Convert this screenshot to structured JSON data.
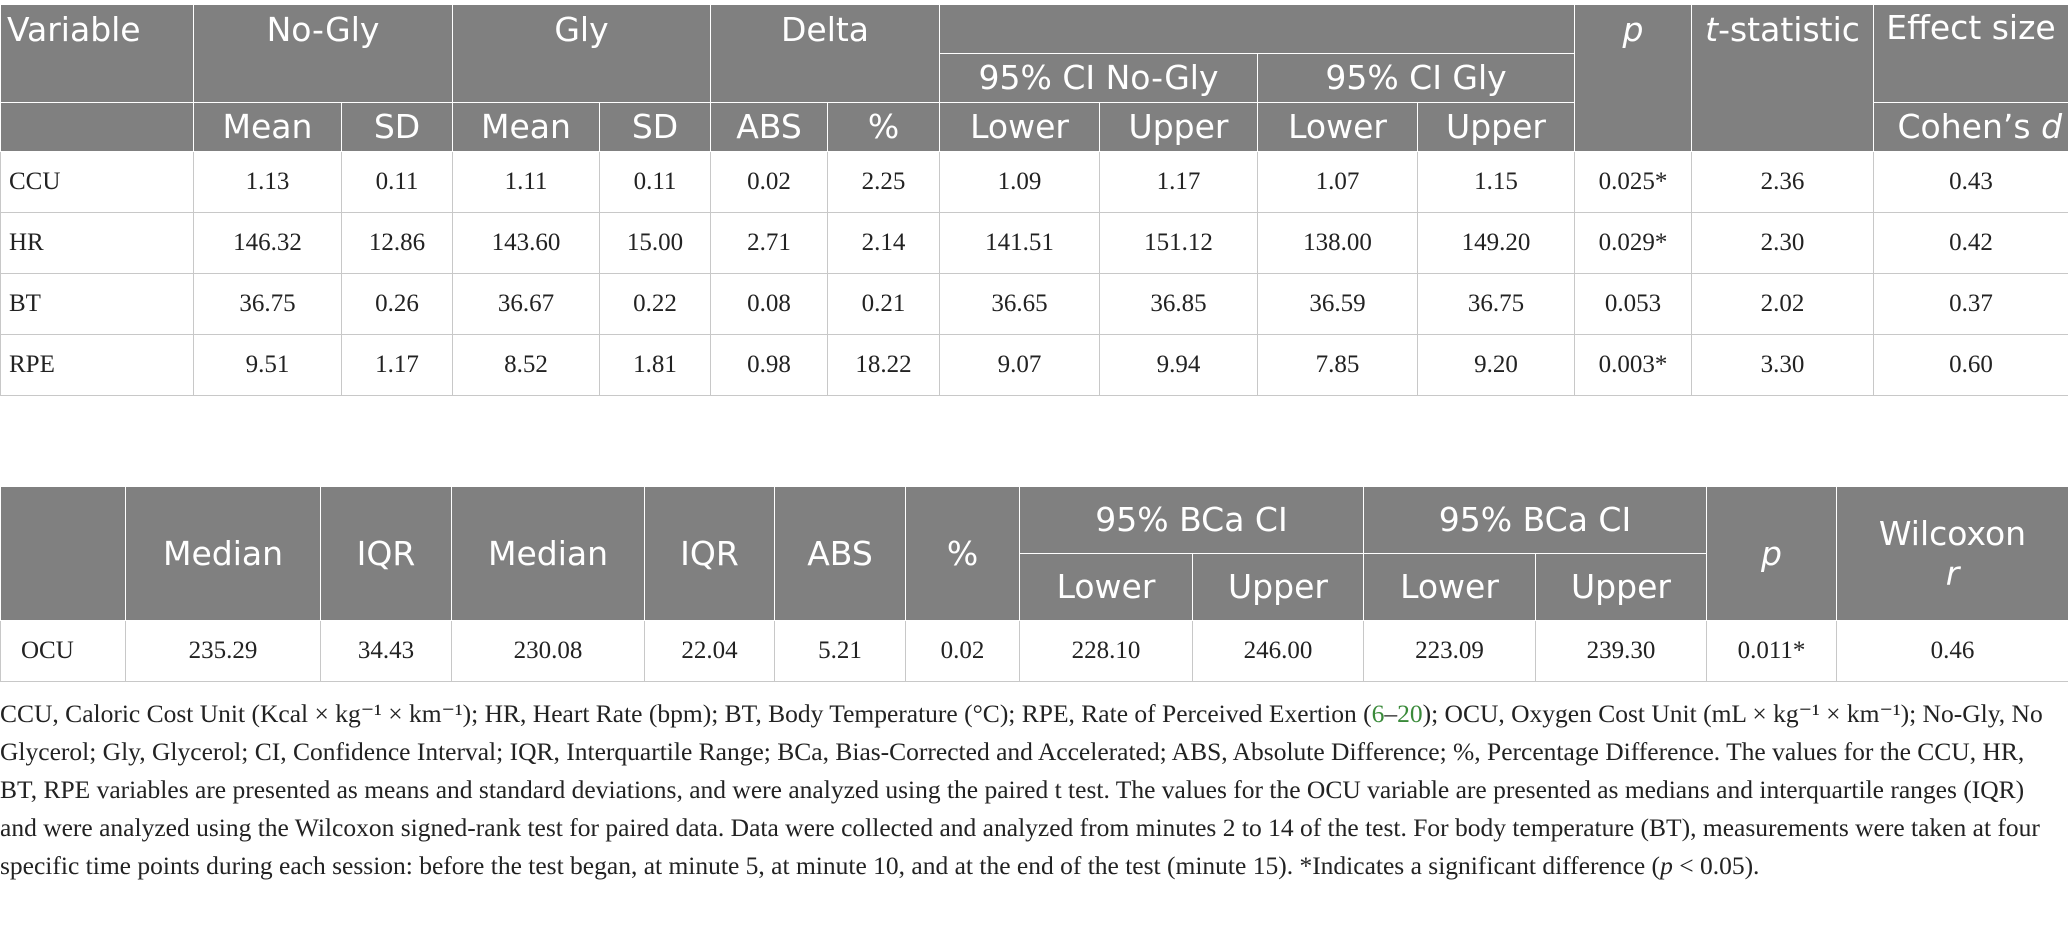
{
  "table1": {
    "header": {
      "variable": "Variable",
      "no_gly": "No-Gly",
      "gly": "Gly",
      "delta": "Delta",
      "ci_no_gly": "95% CI No-Gly",
      "ci_gly": "95% CI Gly",
      "p_label": "p",
      "t_italic": "t",
      "t_rest": "-statistic",
      "effect_size": "Effect size",
      "mean": "Mean",
      "sd": "SD",
      "abs": "ABS",
      "pct": "%",
      "lower": "Lower",
      "upper": "Upper",
      "cohens_d": "Cohen’s d"
    },
    "rows": [
      {
        "var": "CCU",
        "c": [
          "1.13",
          "0.11",
          "1.11",
          "0.11",
          "0.02",
          "2.25",
          "1.09",
          "1.17",
          "1.07",
          "1.15",
          "0.025*",
          "2.36",
          "0.43"
        ]
      },
      {
        "var": "HR",
        "c": [
          "146.32",
          "12.86",
          "143.60",
          "15.00",
          "2.71",
          "2.14",
          "141.51",
          "151.12",
          "138.00",
          "149.20",
          "0.029*",
          "2.30",
          "0.42"
        ]
      },
      {
        "var": "BT",
        "c": [
          "36.75",
          "0.26",
          "36.67",
          "0.22",
          "0.08",
          "0.21",
          "36.65",
          "36.85",
          "36.59",
          "36.75",
          "0.053",
          "2.02",
          "0.37"
        ]
      },
      {
        "var": "RPE",
        "c": [
          "9.51",
          "1.17",
          "8.52",
          "1.81",
          "0.98",
          "18.22",
          "9.07",
          "9.94",
          "7.85",
          "9.20",
          "0.003*",
          "3.30",
          "0.60"
        ]
      }
    ]
  },
  "table2": {
    "header": {
      "median": "Median",
      "iqr": "IQR",
      "abs": "ABS",
      "pct": "%",
      "bca": "95% BCa CI",
      "lower": "Lower",
      "upper": "Upper",
      "p_label": "p",
      "wilcoxon": "Wilcoxon",
      "r_label": "r"
    },
    "rows": [
      {
        "var": "OCU",
        "c": [
          "235.29",
          "34.43",
          "230.08",
          "22.04",
          "5.21",
          "0.02",
          "228.10",
          "246.00",
          "223.09",
          "239.30",
          "0.011*",
          "0.46"
        ]
      }
    ]
  },
  "footnote": {
    "part1": "CCU, Caloric Cost Unit (Kcal × kg⁻¹ × km⁻¹); HR, Heart Rate (bpm); BT, Body Temperature (°C); RPE, Rate of Perceived Exertion (",
    "ref1": "6",
    "dash": "–",
    "ref2": "20",
    "part2": "); OCU, Oxygen Cost Unit (mL × kg⁻¹ × km⁻¹); No-Gly, No Glycerol; Gly, Glycerol; CI, Confidence Interval; IQR, Interquartile Range; BCa, Bias-Corrected and Accelerated; ABS, Absolute Difference; %, Percentage Difference. The values for the CCU, HR, BT, RPE variables are presented as means and standard deviations, and were analyzed using the paired t test. The values for the OCU variable are presented as medians and interquartile ranges (IQR) and were analyzed using the Wilcoxon signed-rank test for paired data. Data were collected and analyzed from minutes 2 to 14 of the test. For body temperature (BT), measurements were taken at four specific time points during each session: before the test began, at minute 5, at minute 10, and at the end of the test (minute 15). *Indicates a significant difference (",
    "p_italic": "p",
    "part3": " < 0.05)."
  }
}
